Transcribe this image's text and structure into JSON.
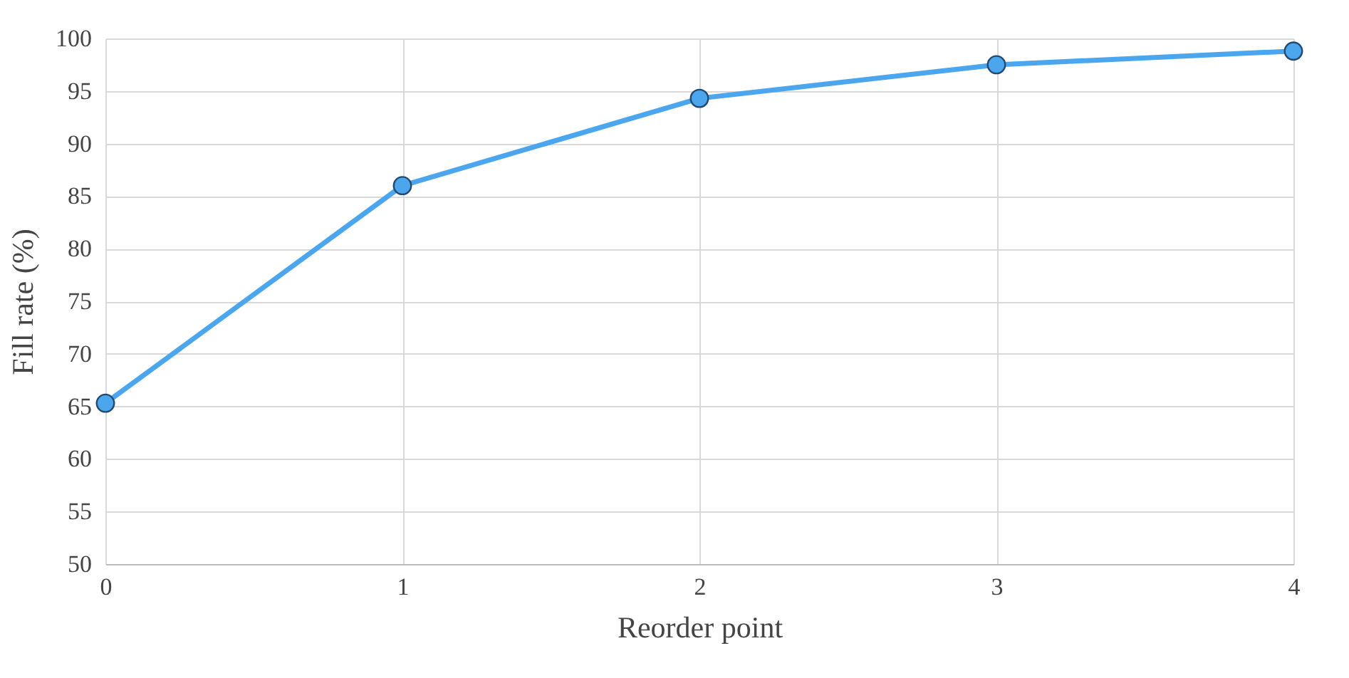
{
  "chart_data": {
    "type": "line",
    "xlabel": "Reorder point",
    "ylabel": "Fill rate (%)",
    "x": [
      0,
      1,
      2,
      3,
      4
    ],
    "series": [
      {
        "color": "#4ba6ee",
        "values": [
          65.3,
          86.0,
          94.3,
          97.5,
          98.8
        ]
      }
    ],
    "xlim": [
      0,
      4
    ],
    "xticks": [
      0,
      1,
      2,
      3,
      4
    ],
    "ylim": [
      50,
      100
    ],
    "yticks": [
      50,
      55,
      60,
      65,
      70,
      75,
      80,
      85,
      90,
      95,
      100
    ],
    "grid": true,
    "marker": "circle",
    "line_style": "solid"
  }
}
